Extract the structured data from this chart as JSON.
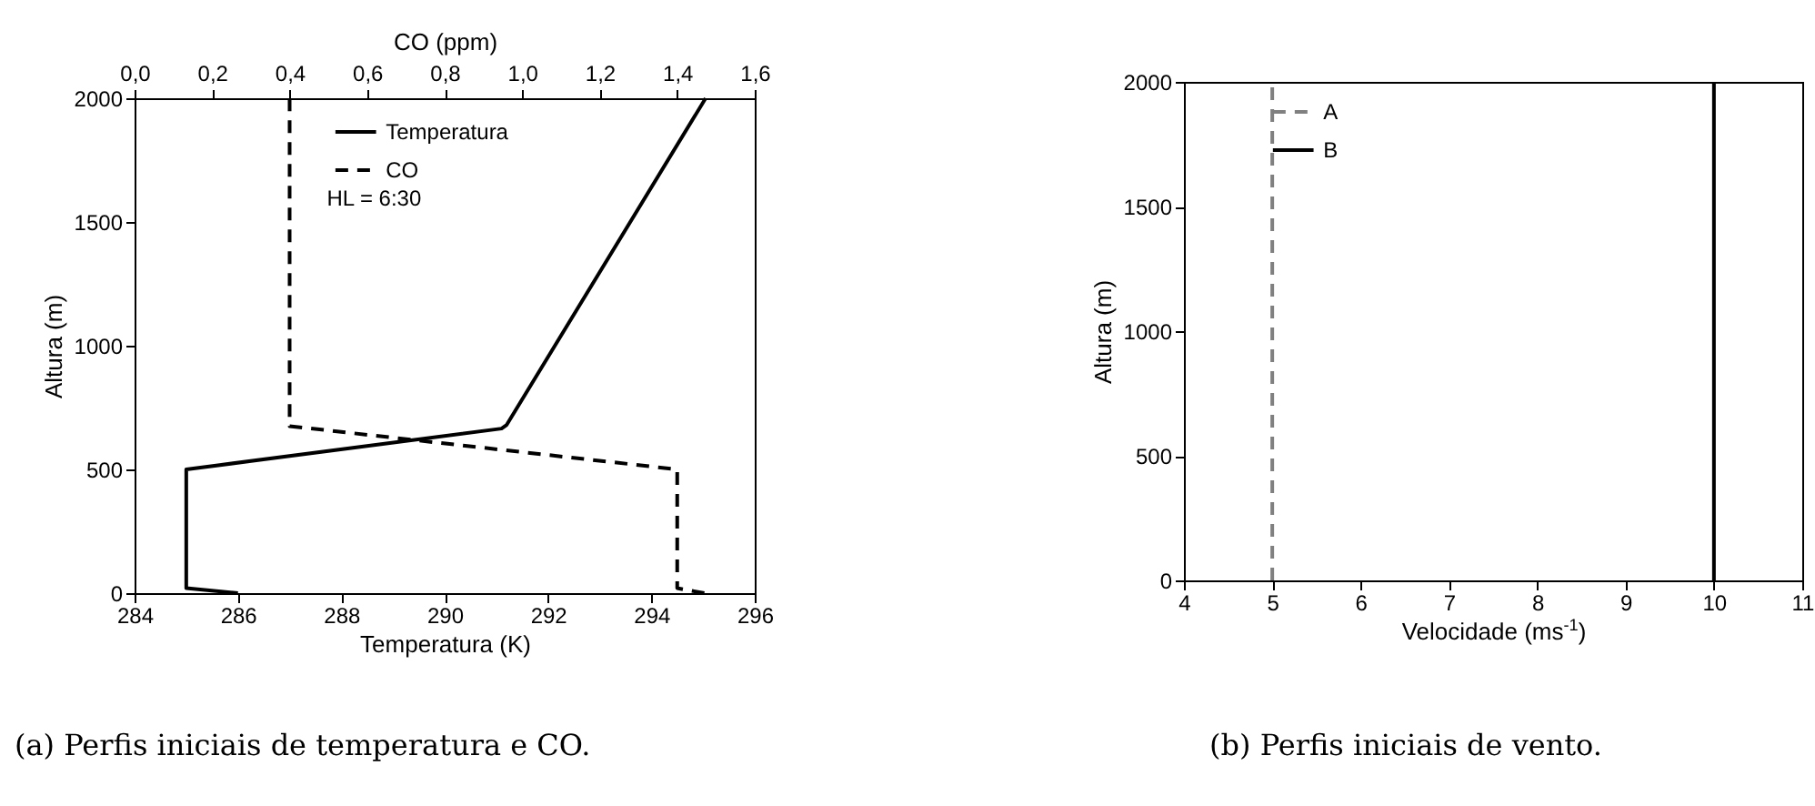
{
  "chart_data": [
    {
      "type": "line",
      "xlabel": "Temperatura (K)",
      "x2label": "CO (ppm)",
      "ylabel": "Altura (m)",
      "xlim": [
        284,
        296
      ],
      "xticks": [
        284,
        286,
        288,
        290,
        292,
        294,
        296
      ],
      "x2lim": [
        0,
        1.6
      ],
      "x2ticks": [
        {
          "value": 0,
          "label": "0,0"
        },
        {
          "value": 0.2,
          "label": "0,2"
        },
        {
          "value": 0.4,
          "label": "0,4"
        },
        {
          "value": 0.6,
          "label": "0,6"
        },
        {
          "value": 0.8,
          "label": "0,8"
        },
        {
          "value": 1.0,
          "label": "1,0"
        },
        {
          "value": 1.2,
          "label": "1,2"
        },
        {
          "value": 1.4,
          "label": "1,4"
        },
        {
          "value": 1.6,
          "label": "1,6"
        }
      ],
      "ylim": [
        0,
        2000
      ],
      "yticks": [
        0,
        500,
        1000,
        1500,
        2000
      ],
      "grid": false,
      "legend": "top",
      "annotations": [
        "HL = 6:30",
        "(a) Perfis iniciais de temperatura e CO."
      ],
      "series": [
        {
          "name": "Temperatura",
          "color": "#000000",
          "line_style": "solid",
          "x": [
            286,
            285,
            285,
            291.1,
            291.2,
            295.05
          ],
          "values": [
            0,
            20,
            500,
            665,
            680,
            2000
          ]
        },
        {
          "name": "CO",
          "color": "#000000",
          "line_style": "dashed",
          "axis": "x2",
          "x": [
            1.47,
            1.4,
            1.4,
            0.4,
            0.4
          ],
          "values": [
            0,
            20,
            500,
            675,
            2000
          ]
        }
      ]
    },
    {
      "type": "line",
      "xlabel": "Velocidade (ms$^{-1}$)",
      "ylabel": "Altura (m)",
      "xlim": [
        4,
        11
      ],
      "xticks": [
        4,
        5,
        6,
        7,
        8,
        9,
        10,
        11
      ],
      "ylim": [
        0,
        2000
      ],
      "yticks": [
        0,
        500,
        1000,
        1500,
        2000
      ],
      "grid": false,
      "legend": "top left",
      "annotations": [
        "(b) Perfis iniciais de vento."
      ],
      "series": [
        {
          "name": "A",
          "color": "#808080",
          "line_style": "dashed",
          "x": [
            5,
            5
          ],
          "values": [
            0,
            2000
          ]
        },
        {
          "name": "B",
          "color": "#000000",
          "line_style": "solid",
          "x": [
            10,
            10
          ],
          "values": [
            0,
            2000
          ]
        }
      ]
    }
  ]
}
